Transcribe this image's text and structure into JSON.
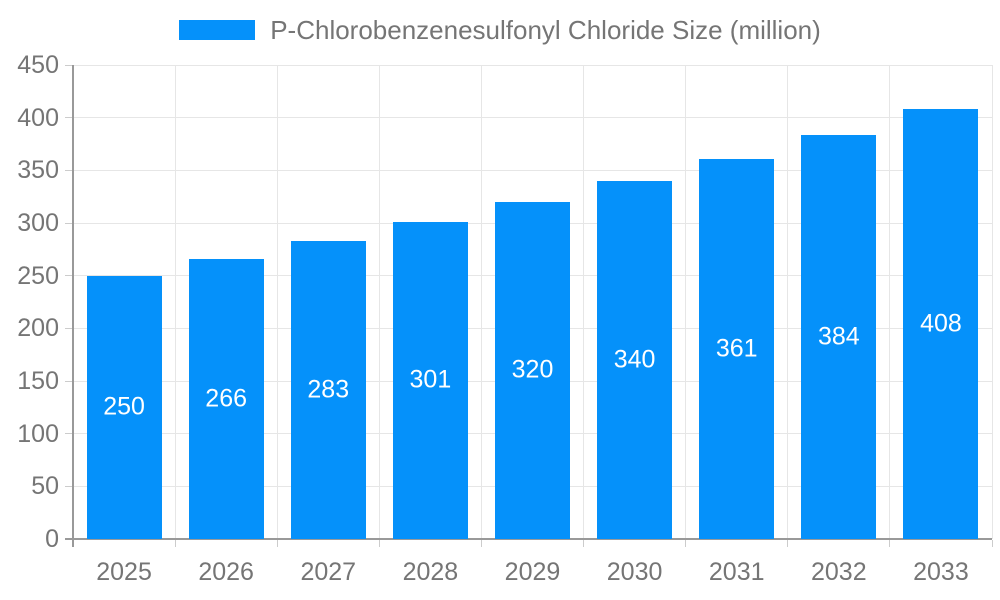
{
  "chart_data": {
    "type": "bar",
    "title": "P-Chlorobenzenesulfonyl Chloride Size (million)",
    "legend_label": "P-Chlorobenzenesulfonyl Chloride Size (million)",
    "legend_position": "top-center",
    "categories": [
      "2025",
      "2026",
      "2027",
      "2028",
      "2029",
      "2030",
      "2031",
      "2032",
      "2033"
    ],
    "values": [
      250,
      266,
      283,
      301,
      320,
      340,
      361,
      384,
      408
    ],
    "value_labels": [
      "250",
      "266",
      "283",
      "301",
      "320",
      "340",
      "361",
      "384",
      "408"
    ],
    "xlabel": "",
    "ylabel": "",
    "ylim": [
      0,
      450
    ],
    "y_tick_step": 50,
    "y_tick_labels": [
      "0",
      "50",
      "100",
      "150",
      "200",
      "250",
      "300",
      "350",
      "400",
      "450"
    ],
    "grid": "on",
    "bar_color": "#0591FA",
    "bar_value_text_color": "#ffffff",
    "axis_line_color": "#999999",
    "tick_color": "#cccccc",
    "gridline_color": "#e6e6e6",
    "label_text_color": "#757575"
  }
}
